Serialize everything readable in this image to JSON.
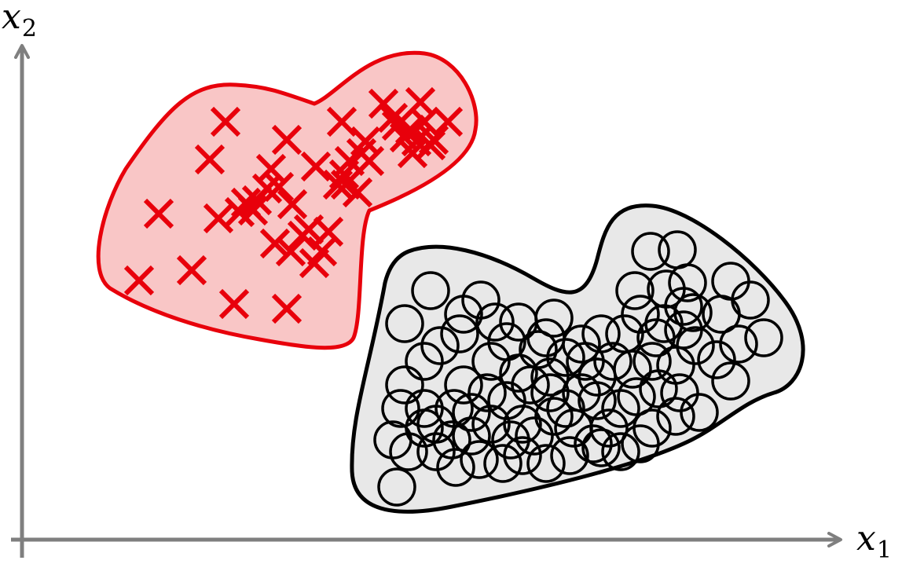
{
  "axes": {
    "x_label": {
      "base": "x",
      "sub": "1"
    },
    "y_label": {
      "base": "x",
      "sub": "2"
    },
    "axis_color": "#7f7f7f"
  },
  "classes": {
    "crosses": {
      "marker": "cross",
      "color": "#e8000b",
      "region_fill": "#f9c6c6",
      "region_stroke": "#e8000b",
      "count": 46
    },
    "circles": {
      "marker": "circle",
      "color": "#000000",
      "region_fill": "#e8e8e8",
      "region_stroke": "#000000",
      "count": 90
    }
  }
}
